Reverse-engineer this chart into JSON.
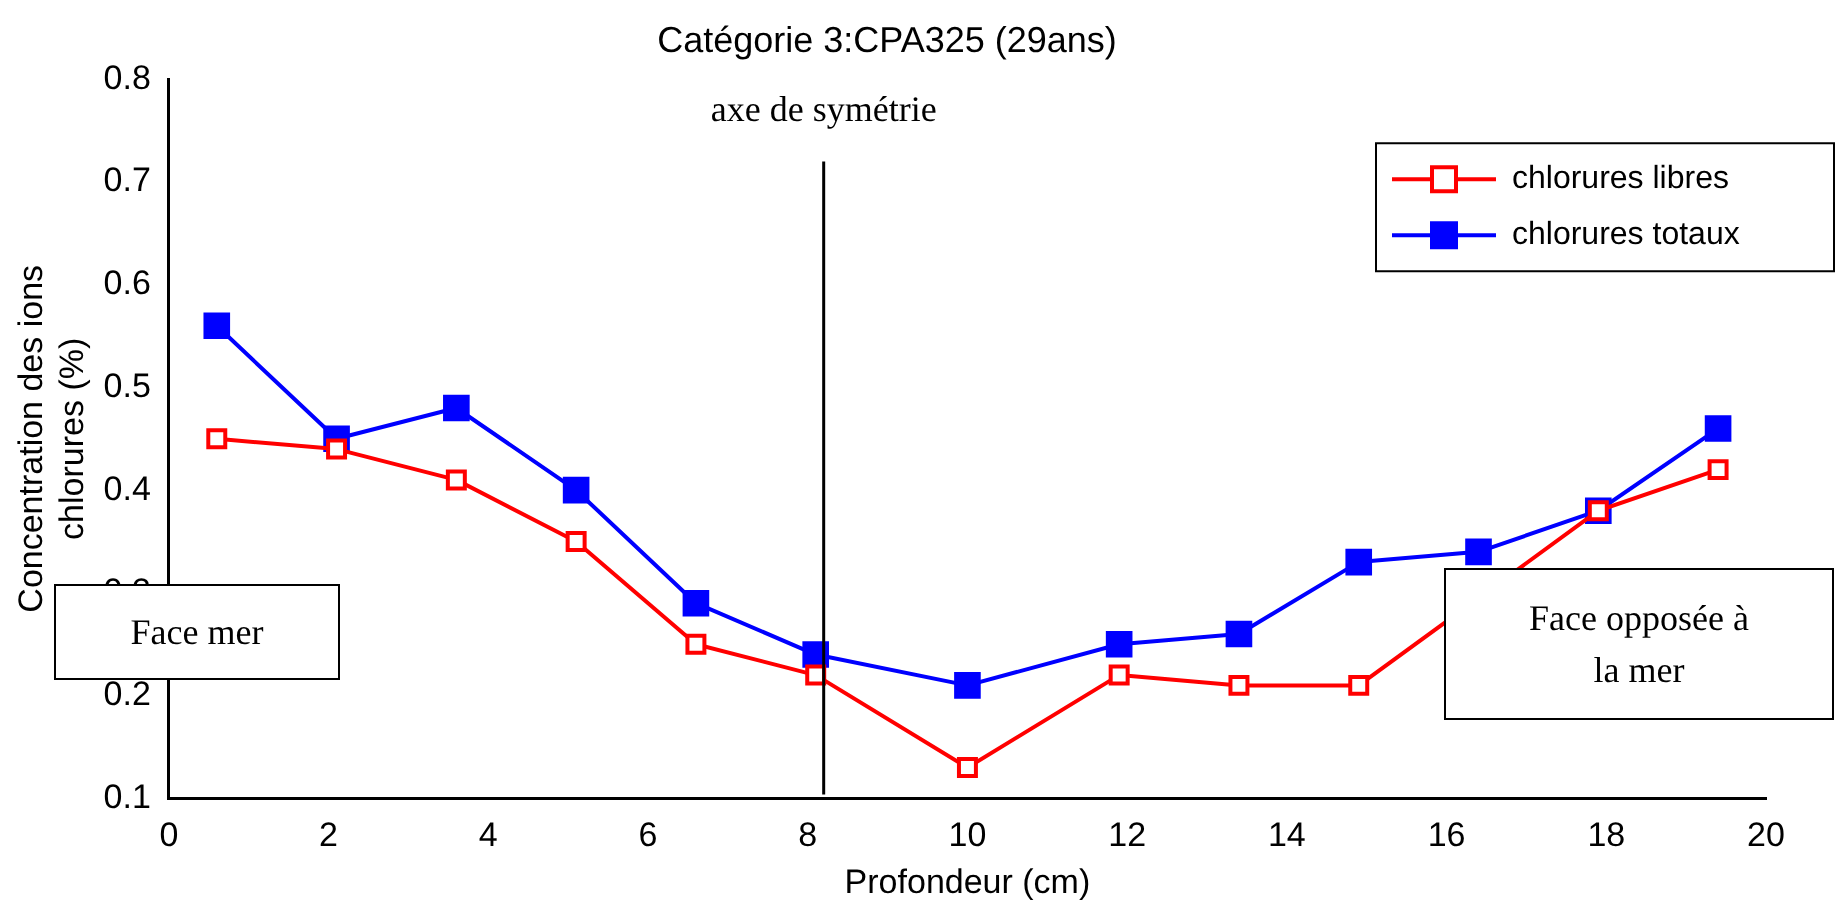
{
  "chart_data": {
    "type": "line",
    "title": "Catégorie 3:CPA325 (29ans)",
    "xlabel": "Profondeur (cm)",
    "ylabel": "Concentration des ions chlorures (%)",
    "x": [
      0.6,
      2.1,
      3.6,
      5.1,
      6.6,
      8.1,
      10,
      11.9,
      13.4,
      14.9,
      16.4,
      17.9,
      19.4
    ],
    "series": [
      {
        "name": "chlorures libres",
        "color": "#ff0000",
        "values": [
          0.45,
          0.44,
          0.41,
          0.35,
          0.25,
          0.22,
          0.13,
          0.22,
          0.21,
          0.21,
          null,
          0.38,
          0.42
        ]
      },
      {
        "name": "chlorures totaux",
        "color": "#0000ff",
        "values": [
          0.56,
          0.45,
          0.48,
          0.4,
          0.29,
          0.24,
          0.21,
          0.25,
          0.26,
          0.33,
          0.34,
          0.38,
          0.46
        ]
      }
    ],
    "xlim": [
      0,
      20
    ],
    "xticks": [
      0,
      2,
      4,
      6,
      8,
      10,
      12,
      14,
      16,
      18,
      20
    ],
    "ylim": [
      0.1,
      0.8
    ],
    "yticks": [
      0.1,
      0.2,
      0.3,
      0.4,
      0.5,
      0.6,
      0.7,
      0.8
    ],
    "ref_lines": [
      {
        "axis": "x",
        "value": 8.2,
        "label": "axe de symétrie",
        "color": "#000000"
      }
    ],
    "annotations": [
      "Face mer",
      "Face opposée à la mer"
    ],
    "grid": false,
    "legend": "top right",
    "marker": "square",
    "line_style": "solid"
  }
}
